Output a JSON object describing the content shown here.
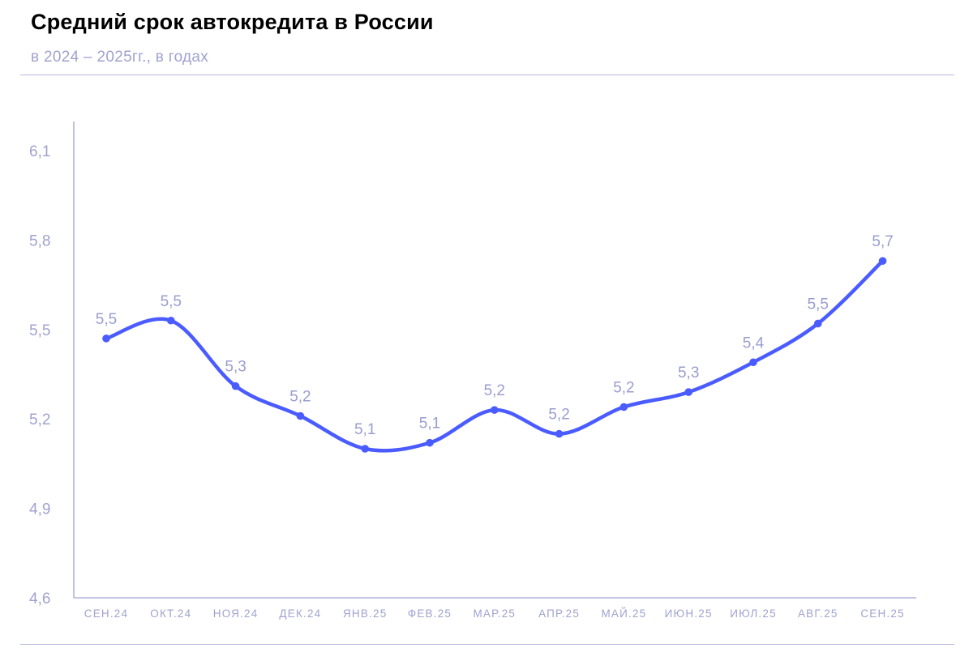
{
  "title": "Средний срок автокредита в России",
  "subtitle": "в 2024 – 2025гг., в годах",
  "colors": {
    "line": "#4a5cff",
    "axis": "#9fa2d4",
    "tick_text": "#a0a2cf",
    "label_text": "#9a9dd0",
    "title": "#000000"
  },
  "chart_data": {
    "type": "line",
    "title": "Средний срок автокредита в России",
    "subtitle": "в 2024 – 2025гг., в годах",
    "xlabel": "",
    "ylabel": "",
    "ylim": [
      4.6,
      6.1
    ],
    "yticks": [
      4.6,
      4.9,
      5.2,
      5.5,
      5.8,
      6.1
    ],
    "ytick_labels": [
      "4,6",
      "4,9",
      "5,2",
      "5,5",
      "5,8",
      "6,1"
    ],
    "grid": false,
    "smooth": true,
    "categories": [
      "СЕН.24",
      "ОКТ.24",
      "НОЯ.24",
      "ДЕК.24",
      "ЯНВ.25",
      "ФЕВ.25",
      "МАР.25",
      "АПР.25",
      "МАЙ.25",
      "ИЮН.25",
      "ИЮЛ.25",
      "АВГ.25",
      "СЕН.25"
    ],
    "series": [
      {
        "values": [
          5.47,
          5.53,
          5.31,
          5.21,
          5.1,
          5.12,
          5.23,
          5.15,
          5.24,
          5.29,
          5.39,
          5.52,
          5.73
        ],
        "data_labels": [
          "5,5",
          "5,5",
          "5,3",
          "5,2",
          "5,1",
          "5,1",
          "5,2",
          "5,2",
          "5,2",
          "5,3",
          "5,4",
          "5,5",
          "5,7"
        ]
      }
    ]
  }
}
